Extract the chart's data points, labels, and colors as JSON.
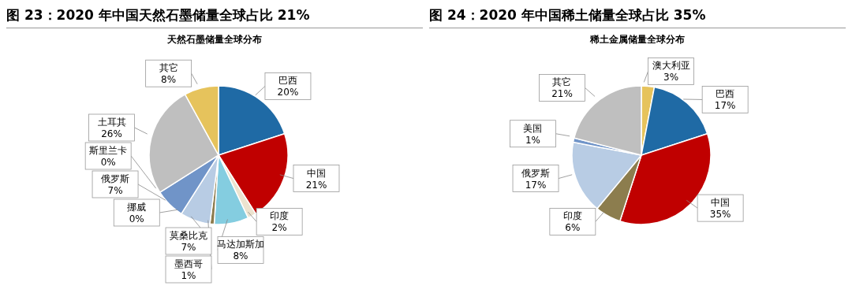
{
  "chart_data": [
    {
      "type": "pie",
      "title": "图 23：2020 年中国天然石墨储量全球占比 21%",
      "subtitle": "天然石墨储量全球分布",
      "categories": [
        "巴西",
        "中国",
        "印度",
        "马达加斯加",
        "墨西哥",
        "莫桑比克",
        "挪威",
        "俄罗斯",
        "斯里兰卡",
        "土耳其",
        "其它"
      ],
      "values": [
        20,
        21,
        2,
        8,
        1,
        7,
        0,
        7,
        0,
        26,
        8
      ],
      "colors": [
        "#1f6aa5",
        "#c00000",
        "#ece3cf",
        "#84cde0",
        "#8c7b4d",
        "#b8cce4",
        "#5b7fbf",
        "#7094c8",
        "#9fb6d8",
        "#bfbfbf",
        "#e6c35c"
      ],
      "value_labels": [
        "20%",
        "21%",
        "2%",
        "8%",
        "1%",
        "7%",
        "0%",
        "7%",
        "0%",
        "26%",
        "8%"
      ]
    },
    {
      "type": "pie",
      "title": "图 24：2020 年中国稀土储量全球占比 35%",
      "subtitle": "稀土金属储量全球分布",
      "categories": [
        "澳大利亚",
        "巴西",
        "中国",
        "印度",
        "俄罗斯",
        "美国",
        "其它"
      ],
      "values": [
        3,
        17,
        35,
        6,
        17,
        1,
        21
      ],
      "colors": [
        "#e6c35c",
        "#1f6aa5",
        "#c00000",
        "#8c7d4e",
        "#b8cce4",
        "#7094c8",
        "#bfbfbf"
      ],
      "value_labels": [
        "3%",
        "17%",
        "35%",
        "6%",
        "17%",
        "1%",
        "21%"
      ]
    }
  ]
}
